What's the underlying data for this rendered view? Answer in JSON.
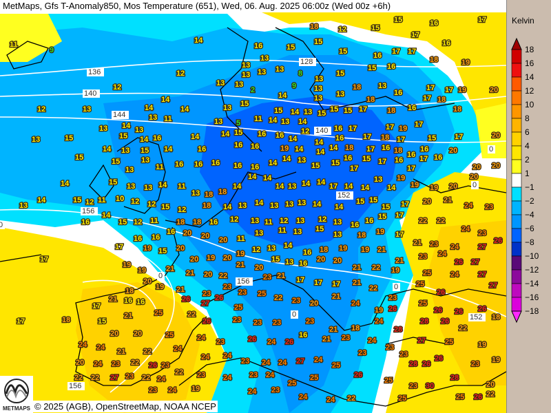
{
  "header": {
    "title": "MetMaps, Gfs T-Anomaly850, Mos Temperature (651), Wed, 06. Aug. 2025 06:00z (Wed 00z +6h)"
  },
  "footer": {
    "copyright": "© 2025 (AGB), OpenStreetMap, NOAA NCEP",
    "logo_text": "METMAPS"
  },
  "legend": {
    "unit": "Kelvin",
    "ticks": [
      "18",
      "16",
      "14",
      "12",
      "10",
      "8",
      "6",
      "4",
      "2",
      "1",
      "−1",
      "−2",
      "−4",
      "−6",
      "−8",
      "−10",
      "−12",
      "−14",
      "−16",
      "−18"
    ],
    "colors": [
      "#a00000",
      "#d00000",
      "#ee1010",
      "#ff5a00",
      "#ff7800",
      "#ff9600",
      "#ffb400",
      "#ffd200",
      "#ffe600",
      "#ffff20",
      "#ffffff",
      "#00e0ff",
      "#00b4ff",
      "#0096ff",
      "#0064ff",
      "#0032c8",
      "#5a0a78",
      "#8c0a9c",
      "#be0abe",
      "#dc00dc",
      "#ff28ff"
    ]
  },
  "isolines": {
    "labels": [
      "136",
      "140",
      "144",
      "156",
      "156",
      "156",
      "128",
      "140",
      "152",
      "152",
      "0",
      "0",
      "0",
      "0",
      "0",
      "0"
    ]
  },
  "stations": [
    "18",
    "12",
    "15",
    "15",
    "17",
    "16",
    "16",
    "17",
    "11",
    "9",
    "14",
    "16",
    "15",
    "15",
    "15",
    "16",
    "17",
    "17",
    "13",
    "13",
    "13",
    "8",
    "15",
    "15",
    "16",
    "18",
    "19",
    "12",
    "13",
    "13",
    "13",
    "18",
    "13",
    "13",
    "16",
    "17",
    "17",
    "19",
    "20",
    "12",
    "13",
    "13",
    "2",
    "14",
    "9",
    "13",
    "13",
    "12",
    "13",
    "14",
    "14",
    "14",
    "13",
    "15",
    "15",
    "14",
    "13",
    "15",
    "15",
    "15",
    "17",
    "18",
    "18",
    "16",
    "17",
    "18",
    "18",
    "14",
    "13",
    "11",
    "13",
    "5",
    "11",
    "14",
    "13",
    "14",
    "12",
    "16",
    "16",
    "17",
    "17",
    "19",
    "17",
    "13",
    "15",
    "13",
    "15",
    "13",
    "14",
    "16",
    "14",
    "14",
    "15",
    "16",
    "16",
    "14",
    "14",
    "14",
    "18",
    "17",
    "18",
    "17",
    "15",
    "17",
    "20",
    "14",
    "13",
    "15",
    "14",
    "16",
    "16",
    "16",
    "19",
    "14",
    "14",
    "16",
    "17",
    "16",
    "18",
    "16",
    "17",
    "15",
    "15",
    "13",
    "13",
    "11",
    "16",
    "16",
    "16",
    "16",
    "16",
    "14",
    "14",
    "13",
    "15",
    "15",
    "17",
    "15",
    "17",
    "16",
    "17",
    "16",
    "16",
    "20",
    "20",
    "20",
    "14",
    "14",
    "15",
    "13",
    "13",
    "14",
    "11",
    "13",
    "18",
    "18",
    "14",
    "14",
    "14",
    "14",
    "13",
    "14",
    "14",
    "17",
    "14",
    "14",
    "13",
    "14",
    "19",
    "19",
    "19",
    "20",
    "20",
    "13",
    "15",
    "12",
    "11",
    "10",
    "12",
    "12",
    "15",
    "12",
    "18",
    "14",
    "13",
    "14",
    "13",
    "13",
    "13",
    "14",
    "14",
    "15",
    "15",
    "15",
    "17",
    "20",
    "21",
    "24",
    "23",
    "14",
    "16",
    "15",
    "12",
    "11",
    "18",
    "18",
    "16",
    "12",
    "13",
    "11",
    "12",
    "13",
    "12",
    "13",
    "16",
    "16",
    "15",
    "17",
    "22",
    "22",
    "24",
    "23",
    "26",
    "17",
    "16",
    "16",
    "16",
    "20",
    "20",
    "20",
    "11",
    "13",
    "11",
    "13",
    "15",
    "13",
    "18",
    "19",
    "17",
    "21",
    "23",
    "24",
    "27",
    "17",
    "19",
    "15",
    "20",
    "20",
    "19",
    "20",
    "19",
    "12",
    "13",
    "14",
    "16",
    "18",
    "19",
    "19",
    "21",
    "21",
    "23",
    "24",
    "26",
    "27",
    "19",
    "19",
    "21",
    "21",
    "20",
    "22",
    "21",
    "20",
    "15",
    "13",
    "16",
    "20",
    "20",
    "21",
    "22",
    "19",
    "25",
    "24",
    "27",
    "20",
    "18",
    "19",
    "21",
    "23",
    "23",
    "23",
    "23",
    "21",
    "17",
    "17",
    "17",
    "21",
    "22",
    "23",
    "25",
    "26",
    "27",
    "17",
    "21",
    "16",
    "16",
    "26",
    "27",
    "26",
    "25",
    "25",
    "22",
    "23",
    "20",
    "21",
    "24",
    "19",
    "26",
    "25",
    "26",
    "26",
    "26",
    "18",
    "17",
    "18",
    "15",
    "21",
    "25",
    "22",
    "26",
    "23",
    "23",
    "23",
    "23",
    "21",
    "18",
    "24",
    "28",
    "28",
    "26",
    "22",
    "20",
    "20",
    "25",
    "24",
    "23",
    "26",
    "24",
    "26",
    "16",
    "21",
    "23",
    "24",
    "23",
    "27",
    "25",
    "19",
    "24",
    "24",
    "21",
    "22",
    "24",
    "24",
    "24",
    "23",
    "24",
    "24",
    "27",
    "24",
    "25",
    "23",
    "23",
    "28",
    "26",
    "26",
    "23",
    "19",
    "20",
    "24",
    "23",
    "22",
    "26",
    "23",
    "22",
    "23",
    "24",
    "23",
    "24",
    "25",
    "25",
    "26",
    "25",
    "23",
    "30",
    "28",
    "20",
    "22",
    "22",
    "27",
    "22",
    "23",
    "23",
    "24",
    "19",
    "24",
    "23",
    "24",
    "24",
    "22",
    "25",
    "25",
    "26",
    "22",
    "24"
  ]
}
